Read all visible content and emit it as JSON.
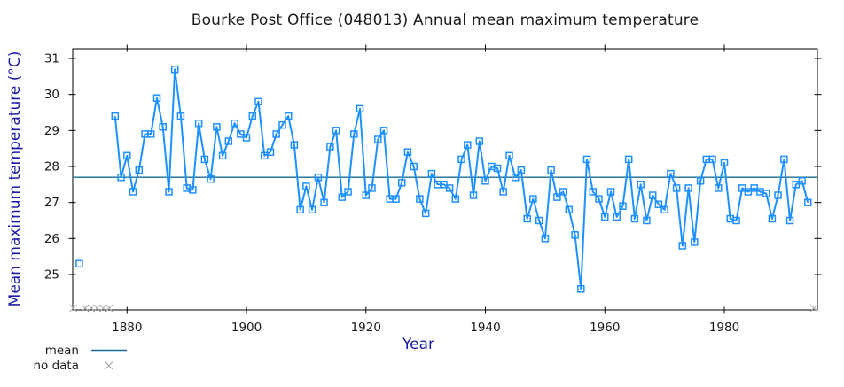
{
  "title": "Bourke Post Office (048013) Annual mean maximum temperature",
  "colors": {
    "series": "#1e90ff",
    "mean_line": "#176e96",
    "no_data": "#a6a6a6",
    "axis_label": "#1a1aa6",
    "axis": "#000000"
  },
  "legend": {
    "mean_label": "mean",
    "no_data_label": "no data"
  },
  "chart_data": {
    "type": "line",
    "title": "Bourke Post Office (048013) Annual mean maximum temperature",
    "xlabel": "Year",
    "ylabel": "Mean maximum temperature (°C)",
    "xlim": [
      1870.9,
      1995.9
    ],
    "ylim": [
      24.0,
      31.3
    ],
    "x_ticks": [
      1880,
      1900,
      1920,
      1940,
      1960,
      1980
    ],
    "y_ticks": [
      25,
      26,
      27,
      28,
      29,
      30,
      31
    ],
    "grid": false,
    "legend_position": "bottom-left-outside",
    "marker": "open-square",
    "mean_value": 27.7,
    "isolated_points": [
      [
        1872,
        25.3
      ]
    ],
    "no_data_years": [
      1871,
      1873,
      1874,
      1875,
      1876,
      1877,
      1995
    ],
    "series": [
      {
        "name": "annual mean maximum temperature",
        "points": [
          [
            1878,
            29.4
          ],
          [
            1879,
            27.7
          ],
          [
            1880,
            28.3
          ],
          [
            1881,
            27.3
          ],
          [
            1882,
            27.9
          ],
          [
            1883,
            28.9
          ],
          [
            1884,
            28.9
          ],
          [
            1885,
            29.9
          ],
          [
            1886,
            29.1
          ],
          [
            1887,
            27.3
          ],
          [
            1888,
            30.7
          ],
          [
            1889,
            29.4
          ],
          [
            1890,
            27.4
          ],
          [
            1891,
            27.35
          ],
          [
            1892,
            29.2
          ],
          [
            1893,
            28.2
          ],
          [
            1894,
            27.65
          ],
          [
            1895,
            29.1
          ],
          [
            1896,
            28.3
          ],
          [
            1897,
            28.7
          ],
          [
            1898,
            29.2
          ],
          [
            1899,
            28.9
          ],
          [
            1900,
            28.8
          ],
          [
            1901,
            29.4
          ],
          [
            1902,
            29.8
          ],
          [
            1903,
            28.3
          ],
          [
            1904,
            28.4
          ],
          [
            1905,
            28.9
          ],
          [
            1906,
            29.15
          ],
          [
            1907,
            29.4
          ],
          [
            1908,
            28.6
          ],
          [
            1909,
            26.8
          ],
          [
            1910,
            27.45
          ],
          [
            1911,
            26.8
          ],
          [
            1912,
            27.7
          ],
          [
            1913,
            27.0
          ],
          [
            1914,
            28.55
          ],
          [
            1915,
            29.0
          ],
          [
            1916,
            27.15
          ],
          [
            1917,
            27.3
          ],
          [
            1918,
            28.9
          ],
          [
            1919,
            29.6
          ],
          [
            1920,
            27.2
          ],
          [
            1921,
            27.4
          ],
          [
            1922,
            28.75
          ],
          [
            1923,
            29.0
          ],
          [
            1924,
            27.1
          ],
          [
            1925,
            27.1
          ],
          [
            1926,
            27.55
          ],
          [
            1927,
            28.4
          ],
          [
            1928,
            28.0
          ],
          [
            1929,
            27.1
          ],
          [
            1930,
            26.7
          ],
          [
            1931,
            27.8
          ],
          [
            1932,
            27.5
          ],
          [
            1933,
            27.5
          ],
          [
            1934,
            27.4
          ],
          [
            1935,
            27.1
          ],
          [
            1936,
            28.2
          ],
          [
            1937,
            28.6
          ],
          [
            1938,
            27.2
          ],
          [
            1939,
            28.7
          ],
          [
            1940,
            27.6
          ],
          [
            1941,
            28.0
          ],
          [
            1942,
            27.95
          ],
          [
            1943,
            27.3
          ],
          [
            1944,
            28.3
          ],
          [
            1945,
            27.7
          ],
          [
            1946,
            27.9
          ],
          [
            1947,
            26.55
          ],
          [
            1948,
            27.1
          ],
          [
            1949,
            26.5
          ],
          [
            1950,
            26.0
          ],
          [
            1951,
            27.9
          ],
          [
            1952,
            27.15
          ],
          [
            1953,
            27.3
          ],
          [
            1954,
            26.8
          ],
          [
            1955,
            26.1
          ],
          [
            1956,
            24.6
          ],
          [
            1957,
            28.2
          ],
          [
            1958,
            27.3
          ],
          [
            1959,
            27.1
          ],
          [
            1960,
            26.6
          ],
          [
            1961,
            27.3
          ],
          [
            1962,
            26.6
          ],
          [
            1963,
            26.9
          ],
          [
            1964,
            28.2
          ],
          [
            1965,
            26.55
          ],
          [
            1966,
            27.5
          ],
          [
            1967,
            26.5
          ],
          [
            1968,
            27.2
          ],
          [
            1969,
            26.95
          ],
          [
            1970,
            26.8
          ],
          [
            1971,
            27.8
          ],
          [
            1972,
            27.4
          ],
          [
            1973,
            25.8
          ],
          [
            1974,
            27.4
          ],
          [
            1975,
            25.9
          ],
          [
            1976,
            27.6
          ],
          [
            1977,
            28.2
          ],
          [
            1978,
            28.2
          ],
          [
            1979,
            27.4
          ],
          [
            1980,
            28.1
          ],
          [
            1981,
            26.55
          ],
          [
            1982,
            26.5
          ],
          [
            1983,
            27.4
          ],
          [
            1984,
            27.3
          ],
          [
            1985,
            27.4
          ],
          [
            1986,
            27.3
          ],
          [
            1987,
            27.25
          ],
          [
            1988,
            26.55
          ],
          [
            1989,
            27.2
          ],
          [
            1990,
            28.2
          ],
          [
            1991,
            26.5
          ],
          [
            1992,
            27.5
          ],
          [
            1993,
            27.6
          ],
          [
            1994,
            27.0
          ]
        ]
      }
    ]
  }
}
